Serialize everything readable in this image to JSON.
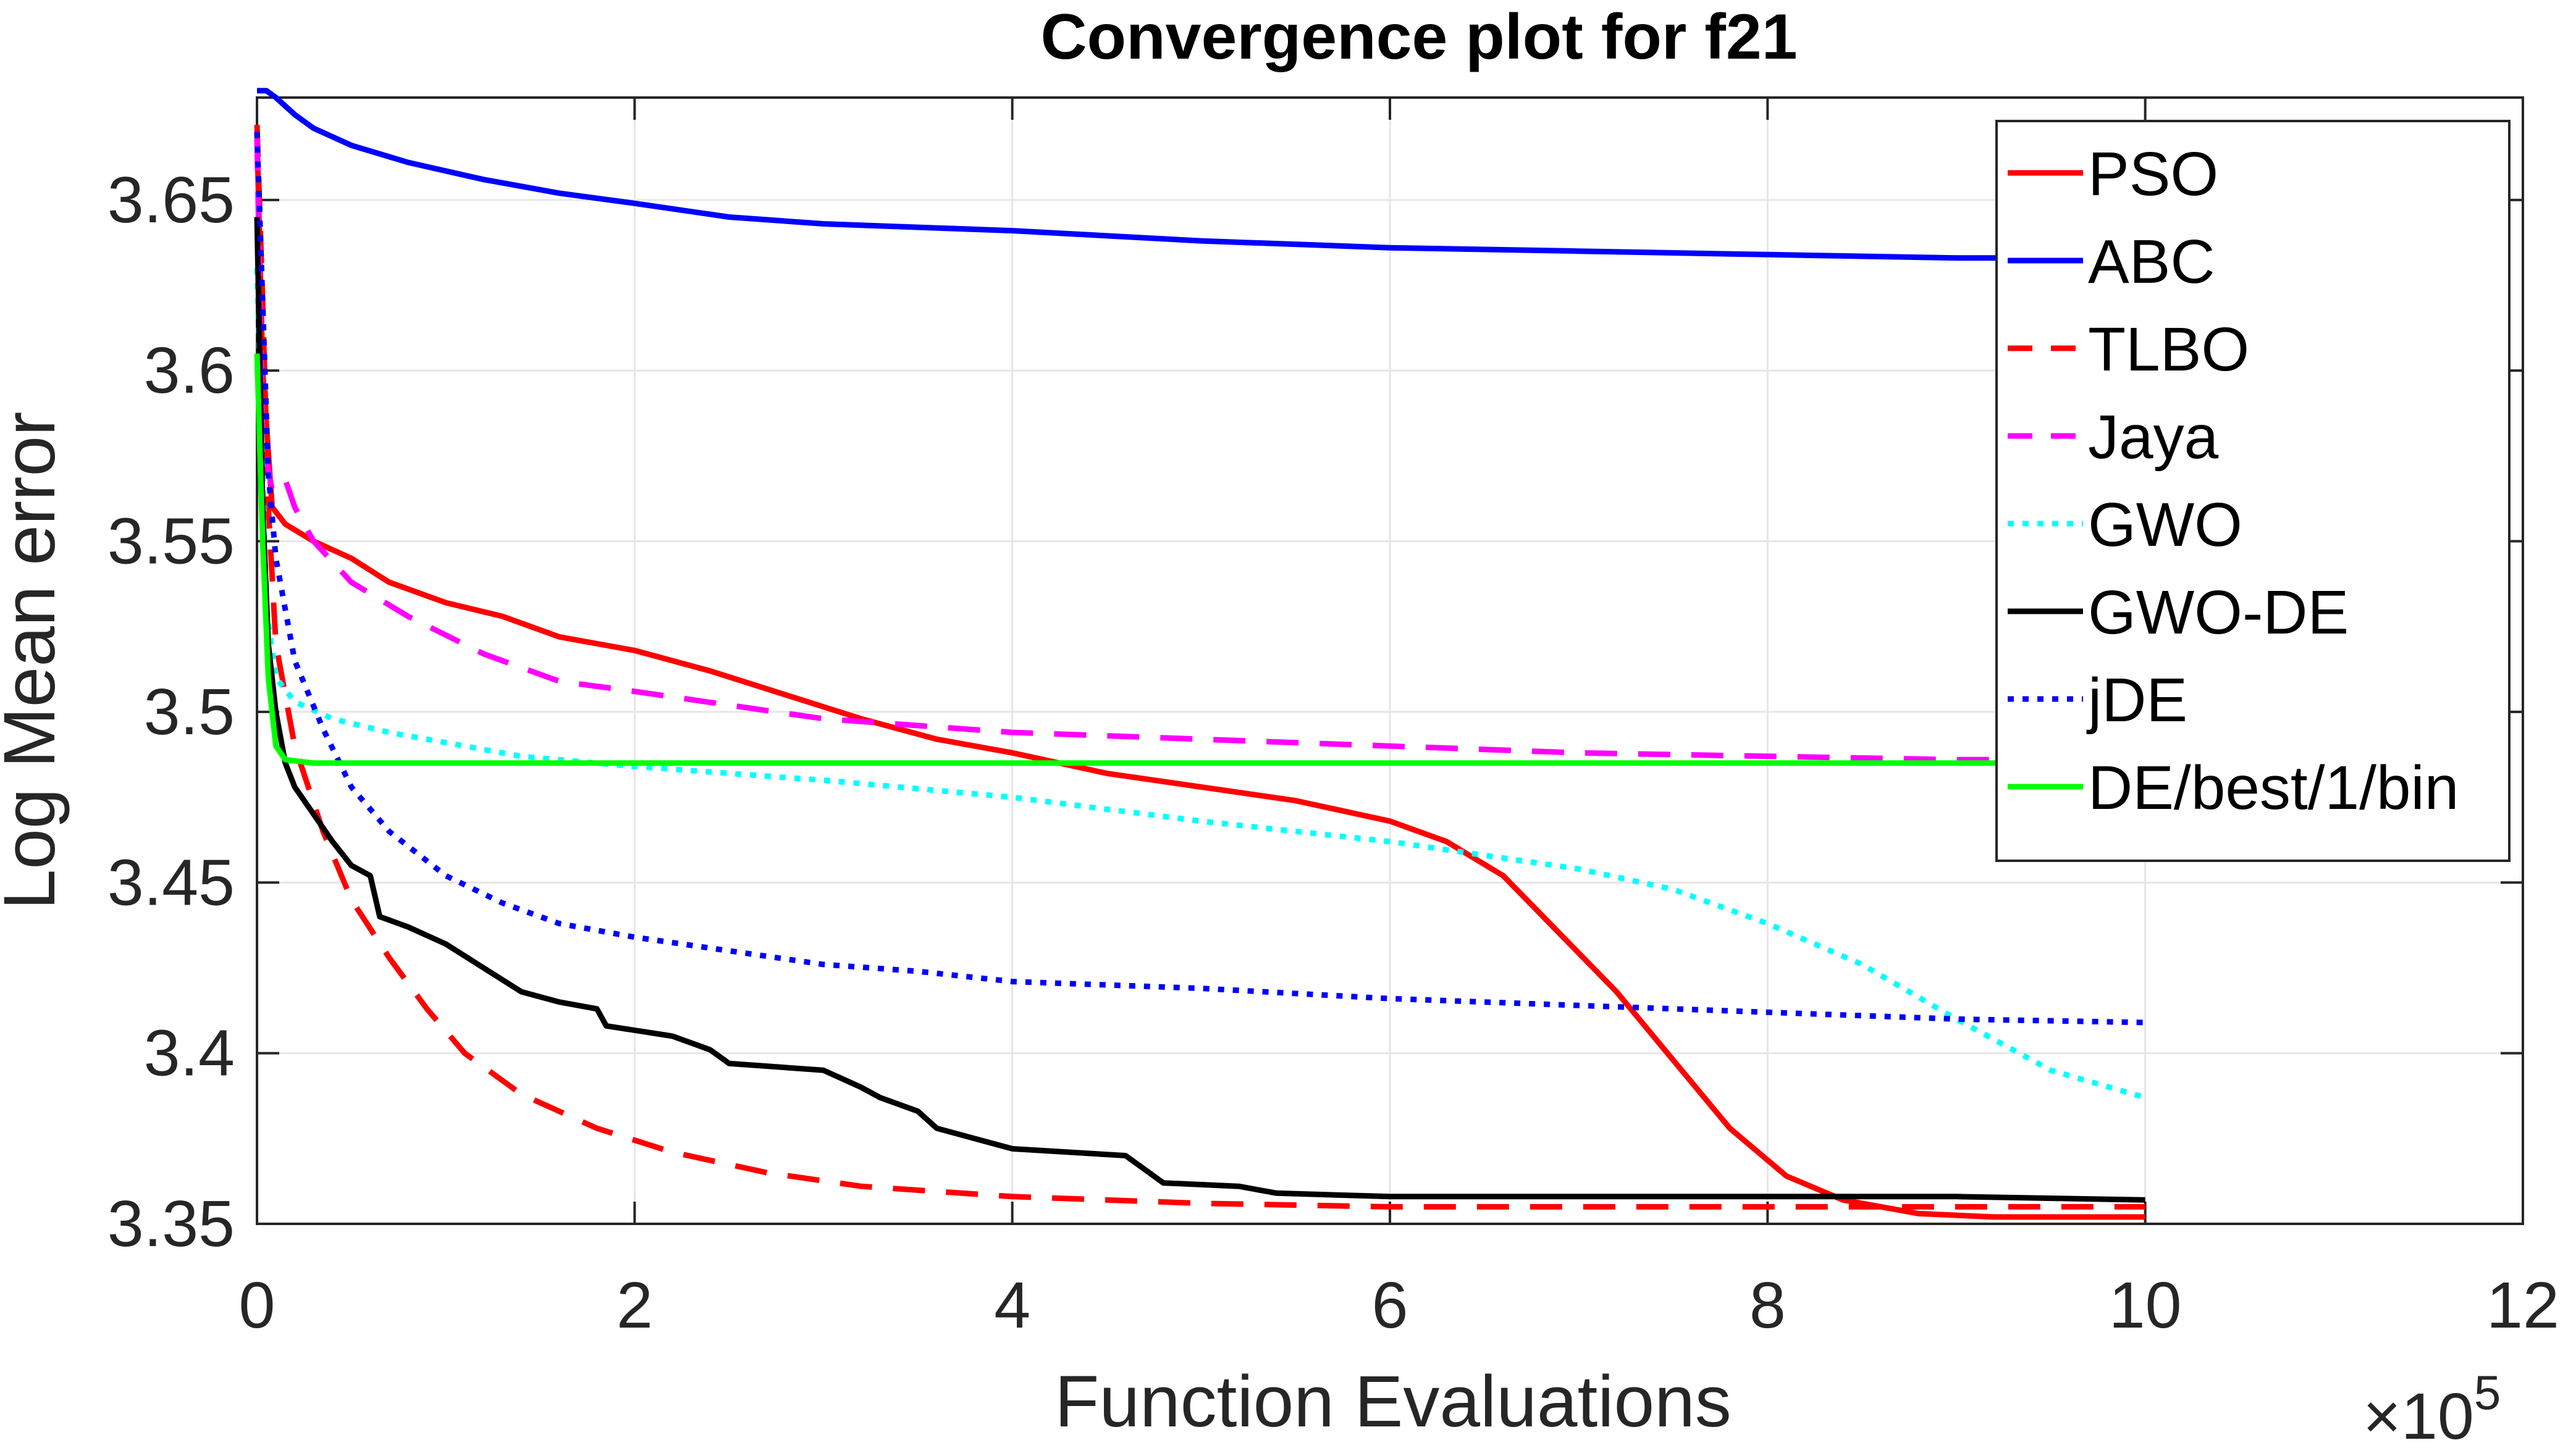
{
  "chart_data": {
    "type": "line",
    "title": "Convergence plot for f21",
    "xlabel": "Function Evaluations",
    "ylabel": "Log Mean error",
    "x_multiplier": {
      "base": "×10",
      "exponent": "5"
    },
    "xlim": [
      0,
      12
    ],
    "ylim": [
      3.35,
      3.68
    ],
    "xticks": [
      0,
      2,
      4,
      6,
      8,
      10,
      12
    ],
    "xtick_labels": [
      "0",
      "2",
      "4",
      "6",
      "8",
      "10",
      "12"
    ],
    "yticks": [
      3.35,
      3.4,
      3.45,
      3.5,
      3.55,
      3.6,
      3.65
    ],
    "ytick_labels": [
      "3.35",
      "3.4",
      "3.45",
      "3.5",
      "3.55",
      "3.6",
      "3.65"
    ],
    "grid": true,
    "legend_position": "top-right",
    "series": [
      {
        "name": "PSO",
        "color": "#ff0000",
        "style": "solid",
        "points": [
          [
            0,
            3.67
          ],
          [
            0.03,
            3.6
          ],
          [
            0.08,
            3.56
          ],
          [
            0.15,
            3.555
          ],
          [
            0.3,
            3.55
          ],
          [
            0.5,
            3.545
          ],
          [
            0.7,
            3.538
          ],
          [
            1,
            3.532
          ],
          [
            1.3,
            3.528
          ],
          [
            1.6,
            3.522
          ],
          [
            2,
            3.518
          ],
          [
            2.4,
            3.512
          ],
          [
            2.8,
            3.505
          ],
          [
            3.2,
            3.498
          ],
          [
            3.6,
            3.492
          ],
          [
            4,
            3.488
          ],
          [
            4.5,
            3.482
          ],
          [
            5,
            3.478
          ],
          [
            5.5,
            3.474
          ],
          [
            6,
            3.468
          ],
          [
            6.3,
            3.462
          ],
          [
            6.6,
            3.452
          ],
          [
            6.9,
            3.435
          ],
          [
            7.2,
            3.418
          ],
          [
            7.5,
            3.398
          ],
          [
            7.8,
            3.378
          ],
          [
            8.1,
            3.364
          ],
          [
            8.4,
            3.357
          ],
          [
            8.8,
            3.353
          ],
          [
            9.2,
            3.352
          ],
          [
            10,
            3.352
          ]
        ]
      },
      {
        "name": "ABC",
        "color": "#0000ff",
        "style": "solid",
        "points": [
          [
            0,
            3.682
          ],
          [
            0.05,
            3.682
          ],
          [
            0.1,
            3.68
          ],
          [
            0.2,
            3.675
          ],
          [
            0.3,
            3.671
          ],
          [
            0.5,
            3.666
          ],
          [
            0.8,
            3.661
          ],
          [
            1.2,
            3.656
          ],
          [
            1.6,
            3.652
          ],
          [
            2,
            3.649
          ],
          [
            2.5,
            3.645
          ],
          [
            3,
            3.643
          ],
          [
            4,
            3.641
          ],
          [
            5,
            3.638
          ],
          [
            6,
            3.636
          ],
          [
            7,
            3.635
          ],
          [
            8,
            3.634
          ],
          [
            9,
            3.633
          ],
          [
            10,
            3.633
          ]
        ]
      },
      {
        "name": "TLBO",
        "color": "#ff0000",
        "style": "dashed",
        "points": [
          [
            0,
            3.672
          ],
          [
            0.03,
            3.62
          ],
          [
            0.06,
            3.56
          ],
          [
            0.1,
            3.52
          ],
          [
            0.2,
            3.49
          ],
          [
            0.35,
            3.465
          ],
          [
            0.5,
            3.445
          ],
          [
            0.7,
            3.428
          ],
          [
            0.9,
            3.413
          ],
          [
            1.1,
            3.4
          ],
          [
            1.4,
            3.388
          ],
          [
            1.8,
            3.378
          ],
          [
            2.2,
            3.371
          ],
          [
            2.7,
            3.365
          ],
          [
            3.2,
            3.361
          ],
          [
            4,
            3.358
          ],
          [
            5,
            3.356
          ],
          [
            6,
            3.355
          ],
          [
            7,
            3.355
          ],
          [
            8,
            3.355
          ],
          [
            9,
            3.355
          ],
          [
            10,
            3.355
          ]
        ]
      },
      {
        "name": "Jaya",
        "color": "#ff00ff",
        "style": "dashed",
        "points": [
          [
            0,
            3.668
          ],
          [
            0.03,
            3.58
          ],
          [
            0.08,
            3.565
          ],
          [
            0.15,
            3.568
          ],
          [
            0.2,
            3.56
          ],
          [
            0.3,
            3.55
          ],
          [
            0.5,
            3.538
          ],
          [
            0.8,
            3.528
          ],
          [
            1.2,
            3.517
          ],
          [
            1.6,
            3.509
          ],
          [
            2,
            3.506
          ],
          [
            2.5,
            3.502
          ],
          [
            3,
            3.498
          ],
          [
            4,
            3.494
          ],
          [
            5,
            3.492
          ],
          [
            6,
            3.49
          ],
          [
            7,
            3.488
          ],
          [
            8,
            3.487
          ],
          [
            9,
            3.486
          ],
          [
            10,
            3.486
          ]
        ]
      },
      {
        "name": "GWO",
        "color": "#00ffff",
        "style": "dotted",
        "points": [
          [
            0,
            3.63
          ],
          [
            0.05,
            3.53
          ],
          [
            0.1,
            3.51
          ],
          [
            0.2,
            3.503
          ],
          [
            0.4,
            3.498
          ],
          [
            0.7,
            3.494
          ],
          [
            1,
            3.491
          ],
          [
            1.4,
            3.487
          ],
          [
            2,
            3.484
          ],
          [
            3,
            3.48
          ],
          [
            4,
            3.475
          ],
          [
            5,
            3.468
          ],
          [
            6,
            3.462
          ],
          [
            6.5,
            3.458
          ],
          [
            7,
            3.454
          ],
          [
            7.5,
            3.448
          ],
          [
            8,
            3.438
          ],
          [
            8.5,
            3.426
          ],
          [
            9,
            3.41
          ],
          [
            9.5,
            3.395
          ],
          [
            10,
            3.387
          ]
        ]
      },
      {
        "name": "GWO-DE",
        "color": "#000000",
        "style": "solid",
        "points": [
          [
            0,
            3.645
          ],
          [
            0.03,
            3.56
          ],
          [
            0.06,
            3.52
          ],
          [
            0.1,
            3.5
          ],
          [
            0.15,
            3.485
          ],
          [
            0.2,
            3.478
          ],
          [
            0.3,
            3.47
          ],
          [
            0.4,
            3.462
          ],
          [
            0.5,
            3.455
          ],
          [
            0.6,
            3.452
          ],
          [
            0.65,
            3.44
          ],
          [
            0.8,
            3.437
          ],
          [
            1,
            3.432
          ],
          [
            1.2,
            3.425
          ],
          [
            1.4,
            3.418
          ],
          [
            1.6,
            3.415
          ],
          [
            1.8,
            3.413
          ],
          [
            1.85,
            3.408
          ],
          [
            2.2,
            3.405
          ],
          [
            2.4,
            3.401
          ],
          [
            2.5,
            3.397
          ],
          [
            3,
            3.395
          ],
          [
            3.2,
            3.39
          ],
          [
            3.3,
            3.387
          ],
          [
            3.5,
            3.383
          ],
          [
            3.6,
            3.378
          ],
          [
            3.8,
            3.375
          ],
          [
            4,
            3.372
          ],
          [
            4.6,
            3.37
          ],
          [
            4.8,
            3.362
          ],
          [
            5.2,
            3.361
          ],
          [
            5.4,
            3.359
          ],
          [
            6,
            3.358
          ],
          [
            7,
            3.358
          ],
          [
            8,
            3.358
          ],
          [
            9,
            3.358
          ],
          [
            10,
            3.357
          ]
        ]
      },
      {
        "name": "jDE",
        "color": "#0000ff",
        "style": "dotted",
        "points": [
          [
            0,
            3.67
          ],
          [
            0.03,
            3.62
          ],
          [
            0.06,
            3.57
          ],
          [
            0.1,
            3.545
          ],
          [
            0.2,
            3.515
          ],
          [
            0.35,
            3.495
          ],
          [
            0.5,
            3.478
          ],
          [
            0.7,
            3.465
          ],
          [
            1,
            3.452
          ],
          [
            1.3,
            3.444
          ],
          [
            1.6,
            3.438
          ],
          [
            2,
            3.434
          ],
          [
            2.5,
            3.43
          ],
          [
            3,
            3.426
          ],
          [
            3.5,
            3.424
          ],
          [
            4,
            3.421
          ],
          [
            5,
            3.419
          ],
          [
            6,
            3.416
          ],
          [
            7,
            3.414
          ],
          [
            8,
            3.412
          ],
          [
            9,
            3.41
          ],
          [
            10,
            3.409
          ]
        ]
      },
      {
        "name": "DE/best/1/bin",
        "color": "#00ff00",
        "style": "solid",
        "points": [
          [
            0,
            3.605
          ],
          [
            0.03,
            3.55
          ],
          [
            0.06,
            3.51
          ],
          [
            0.1,
            3.49
          ],
          [
            0.15,
            3.486
          ],
          [
            0.3,
            3.485
          ],
          [
            1,
            3.485
          ],
          [
            3,
            3.485
          ],
          [
            5,
            3.485
          ],
          [
            7,
            3.485
          ],
          [
            9,
            3.485
          ],
          [
            10,
            3.485
          ]
        ]
      }
    ]
  }
}
